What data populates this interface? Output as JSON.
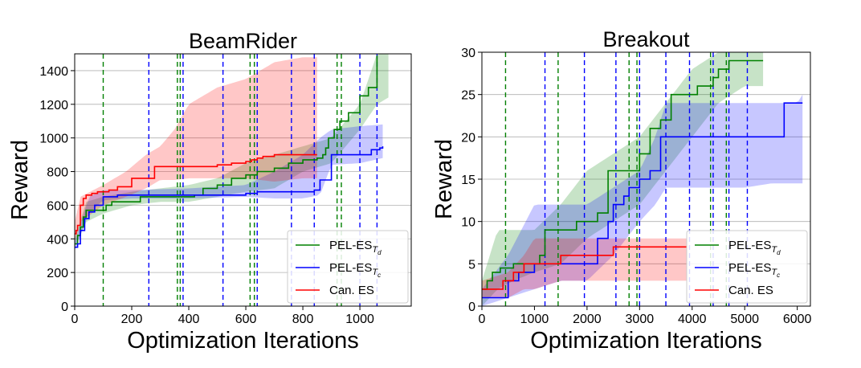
{
  "chart_data": [
    {
      "type": "line",
      "title": "BeamRider",
      "xlabel": "Optimization Iterations",
      "ylabel": "Reward",
      "xlim": [
        0,
        1180
      ],
      "ylim": [
        0,
        1500
      ],
      "xticks": [
        "0",
        "200",
        "400",
        "600",
        "800",
        "1000"
      ],
      "yticks": [
        "0",
        "200",
        "400",
        "600",
        "800",
        "1000",
        "1200",
        "1400"
      ],
      "xtick_values": [
        0,
        200,
        400,
        600,
        800,
        1000
      ],
      "ytick_values": [
        0,
        200,
        400,
        600,
        800,
        1000,
        1200,
        1400
      ],
      "grid": "horizontal",
      "legend_position": "lower-right",
      "series": [
        {
          "name": "PEL-ES",
          "name_subscript": "Td",
          "color": "#008000",
          "x": [
            0,
            10,
            20,
            30,
            40,
            55,
            70,
            100,
            110,
            130,
            180,
            230,
            280,
            330,
            380,
            420,
            450,
            500,
            550,
            600,
            640,
            700,
            750,
            800,
            850,
            870,
            880,
            890,
            910,
            930,
            960,
            1000,
            1030,
            1060
          ],
          "y": [
            370,
            420,
            470,
            530,
            570,
            570,
            570,
            570,
            600,
            620,
            620,
            650,
            650,
            650,
            650,
            660,
            700,
            720,
            760,
            780,
            800,
            820,
            850,
            870,
            880,
            900,
            940,
            1000,
            1050,
            1100,
            1150,
            1250,
            1300,
            1490
          ],
          "band_x": [
            0,
            40,
            100,
            200,
            300,
            400,
            500,
            600,
            700,
            800,
            900,
            1000,
            1060,
            1100
          ],
          "band_lo": [
            350,
            500,
            550,
            600,
            620,
            620,
            650,
            680,
            700,
            800,
            850,
            1050,
            1200,
            1240
          ],
          "band_hi": [
            400,
            620,
            650,
            680,
            700,
            720,
            760,
            850,
            900,
            950,
            1000,
            1200,
            1500,
            1500
          ]
        },
        {
          "name": "PEL-ES",
          "name_subscript": "Tc",
          "color": "#0000ff",
          "x": [
            0,
            10,
            20,
            35,
            50,
            70,
            100,
            150,
            200,
            300,
            400,
            500,
            600,
            640,
            700,
            760,
            780,
            820,
            840,
            860,
            900,
            960,
            1000,
            1040,
            1070,
            1080
          ],
          "y": [
            350,
            370,
            450,
            520,
            560,
            600,
            650,
            660,
            660,
            660,
            660,
            660,
            670,
            680,
            680,
            680,
            680,
            680,
            690,
            750,
            900,
            900,
            900,
            930,
            940,
            950
          ],
          "band_x": [
            0,
            50,
            100,
            200,
            400,
            600,
            700,
            800,
            860,
            900,
            1000,
            1080
          ],
          "band_lo": [
            330,
            550,
            630,
            640,
            640,
            650,
            640,
            640,
            660,
            840,
            850,
            880
          ],
          "band_hi": [
            380,
            650,
            690,
            690,
            700,
            720,
            800,
            900,
            1000,
            1050,
            1070,
            1080
          ]
        },
        {
          "name": "Can. ES",
          "color": "#ff0000",
          "x": [
            0,
            5,
            10,
            20,
            30,
            40,
            60,
            80,
            100,
            120,
            150,
            170,
            200,
            250,
            280,
            350,
            400,
            450,
            500,
            550,
            600,
            620,
            640,
            660,
            700,
            760,
            800,
            850
          ],
          "y": [
            430,
            450,
            480,
            600,
            640,
            660,
            670,
            680,
            680,
            690,
            710,
            710,
            760,
            760,
            830,
            830,
            830,
            830,
            840,
            850,
            860,
            870,
            880,
            890,
            900,
            900,
            900,
            900
          ],
          "band_x": [
            0,
            20,
            100,
            180,
            250,
            300,
            350,
            400,
            500,
            600,
            700,
            800,
            850
          ],
          "band_lo": [
            380,
            500,
            600,
            650,
            700,
            750,
            750,
            760,
            760,
            760,
            740,
            760,
            760
          ],
          "band_hi": [
            500,
            650,
            720,
            800,
            900,
            950,
            1050,
            1200,
            1300,
            1350,
            1450,
            1480,
            1480
          ]
        }
      ],
      "vlines": [
        {
          "color": "#008000",
          "x": [
            100,
            360,
            370,
            615,
            630,
            920,
            935
          ]
        },
        {
          "color": "#0000ff",
          "x": [
            260,
            380,
            520,
            640,
            760,
            840,
            1000,
            1060
          ]
        }
      ]
    },
    {
      "type": "line",
      "title": "Breakout",
      "xlabel": "Optimization Iterations",
      "ylabel": "Reward",
      "xlim": [
        0,
        6250
      ],
      "ylim": [
        0,
        30
      ],
      "xticks": [
        "0",
        "1000",
        "2000",
        "3000",
        "4000",
        "5000",
        "6000"
      ],
      "yticks": [
        "0",
        "5",
        "10",
        "15",
        "20",
        "25",
        "30"
      ],
      "xtick_values": [
        0,
        1000,
        2000,
        3000,
        4000,
        5000,
        6000
      ],
      "ytick_values": [
        0,
        5,
        10,
        15,
        20,
        25,
        30
      ],
      "grid": "horizontal",
      "legend_position": "lower-right",
      "series": [
        {
          "name": "PEL-ES",
          "name_subscript": "Td",
          "color": "#008000",
          "x": [
            0,
            100,
            200,
            350,
            600,
            800,
            1100,
            1200,
            1500,
            1800,
            2000,
            2200,
            2400,
            2800,
            3000,
            3200,
            3400,
            3600,
            3800,
            4100,
            4400,
            4500,
            4700,
            5000,
            5200,
            5350
          ],
          "y": [
            2,
            3,
            4,
            4.5,
            5,
            5,
            6,
            9,
            9,
            10,
            10,
            11,
            16,
            16,
            18,
            21,
            22,
            25,
            25,
            26,
            27,
            28,
            29,
            29,
            29,
            29
          ],
          "band_x": [
            0,
            300,
            600,
            1000,
            1500,
            2000,
            2500,
            3000,
            3500,
            4000,
            4500,
            5000,
            5350
          ],
          "band_lo": [
            0,
            2,
            3,
            4,
            5,
            8,
            10,
            12,
            16,
            20,
            24,
            26,
            26
          ],
          "band_hi": [
            3,
            9,
            9,
            9,
            12,
            16,
            18,
            20,
            24,
            28,
            30,
            30,
            30
          ]
        },
        {
          "name": "PEL-ES",
          "name_subscript": "Tc",
          "color": "#0000ff",
          "x": [
            0,
            400,
            500,
            700,
            1000,
            1100,
            1300,
            1500,
            2000,
            2200,
            2400,
            2500,
            2600,
            2700,
            2800,
            3000,
            3200,
            3400,
            3600,
            3800,
            4000,
            4500,
            5000,
            5500,
            5750,
            6000,
            6100
          ],
          "y": [
            1,
            1,
            3,
            4,
            5,
            5,
            5,
            5,
            5,
            8,
            10,
            12,
            12,
            13,
            14,
            15,
            16,
            20,
            20,
            20,
            20,
            20,
            20,
            20,
            24,
            24,
            24
          ],
          "band_x": [
            0,
            500,
            1000,
            1500,
            2000,
            2500,
            3000,
            3300,
            3500,
            4000,
            4500,
            5000,
            5500,
            6000,
            6100
          ],
          "band_lo": [
            0,
            1,
            2,
            3,
            3,
            6,
            10,
            12,
            14,
            14,
            14,
            14,
            14.5,
            14.5,
            14.5
          ],
          "band_hi": [
            2,
            6,
            12,
            12,
            12,
            14,
            16,
            20,
            24,
            24,
            24,
            24,
            24,
            24,
            25
          ]
        },
        {
          "name": "Can. ES",
          "color": "#ff0000",
          "x": [
            0,
            200,
            400,
            600,
            800,
            1000,
            1200,
            1500,
            2000,
            2200,
            2500,
            3000,
            3500,
            3900
          ],
          "y": [
            2,
            2,
            3,
            4,
            5,
            5,
            5,
            6,
            6,
            6,
            7,
            7,
            7,
            7
          ],
          "band_x": [
            0,
            500,
            800,
            1000,
            1500,
            2000,
            2500,
            3000,
            3500,
            3900
          ],
          "band_lo": [
            1,
            1,
            2,
            2,
            3,
            3,
            3,
            3,
            3,
            3
          ],
          "band_hi": [
            3,
            4,
            6,
            8,
            8,
            8,
            8,
            8,
            8,
            8
          ]
        }
      ],
      "vlines": [
        {
          "color": "#008000",
          "x": [
            450,
            1450,
            2800,
            2950,
            4350,
            4650
          ]
        },
        {
          "color": "#0000ff",
          "x": [
            1200,
            1950,
            2550,
            3000,
            3500,
            3950,
            4400,
            4700,
            5050
          ]
        }
      ]
    }
  ]
}
